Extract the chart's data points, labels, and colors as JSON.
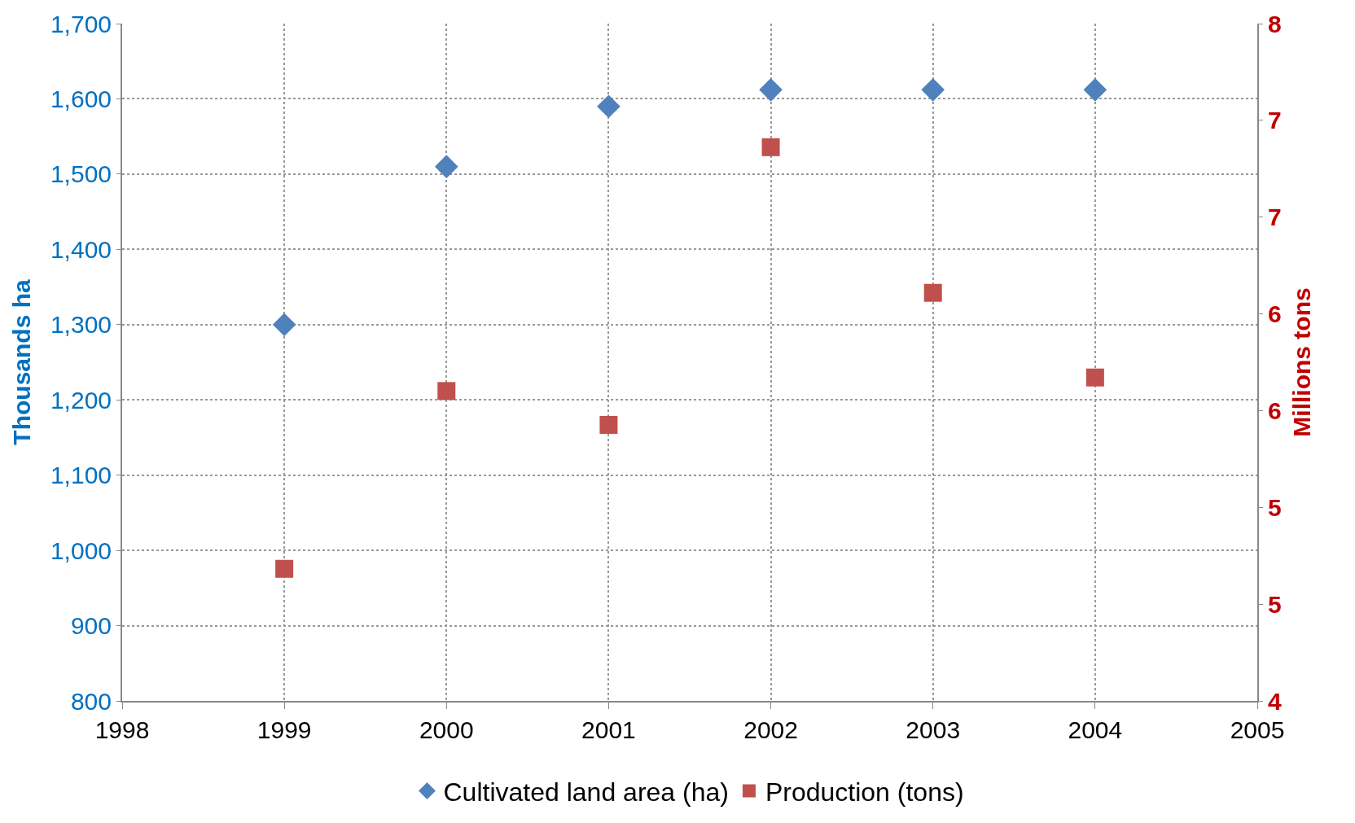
{
  "chart_data": {
    "type": "scatter",
    "ylabel": "Thousands ha",
    "y2label": "Millions tons",
    "x": [
      1999,
      2000,
      2001,
      2002,
      2003,
      2004
    ],
    "series": [
      {
        "name": "Cultivated land area (ha)",
        "color": "#4f81bd",
        "marker": "diamond",
        "values": [
          1300,
          1510,
          1590,
          1612,
          1612,
          1612
        ]
      },
      {
        "name": "Production (tons)",
        "color": "#c0504d",
        "marker": "square",
        "axis": "y2",
        "values": [
          4.78,
          5.83,
          5.63,
          7.27,
          6.41,
          5.91
        ]
      }
    ],
    "xlim": [
      1998,
      2005
    ],
    "xticks": [
      1998,
      1999,
      2000,
      2001,
      2002,
      2003,
      2004,
      2005
    ],
    "ylim": [
      800,
      1700
    ],
    "yticks": [
      {
        "value": 800,
        "label": "800"
      },
      {
        "value": 900,
        "label": "900"
      },
      {
        "value": 1000,
        "label": "1,000"
      },
      {
        "value": 1100,
        "label": "1,100"
      },
      {
        "value": 1200,
        "label": "1,200"
      },
      {
        "value": 1300,
        "label": "1,300"
      },
      {
        "value": 1400,
        "label": "1,400"
      },
      {
        "value": 1500,
        "label": "1,500"
      },
      {
        "value": 1600,
        "label": "1,600"
      },
      {
        "value": 1700,
        "label": "1,700"
      }
    ],
    "y2lim": [
      4,
      8
    ],
    "y2ticks": [
      4,
      {
        "value": 4.571,
        "label": "5"
      },
      {
        "value": 5.143,
        "label": "5"
      },
      {
        "value": 5.714,
        "label": "6"
      },
      {
        "value": 6.286,
        "label": "6"
      },
      {
        "value": 6.857,
        "label": "7"
      },
      {
        "value": 7.429,
        "label": "7"
      },
      8
    ],
    "grid": true,
    "legend": "bottom"
  }
}
